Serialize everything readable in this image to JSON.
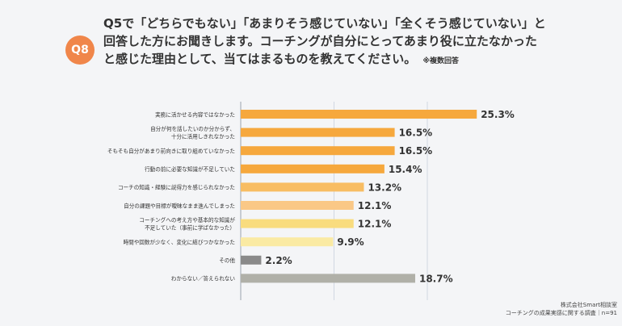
{
  "badge": "Q8",
  "question": {
    "lines": [
      "Q5で「どちらでもない」「あまりそう感じていない」「全くそう感じていない」と",
      "回答した方にお聞きします。コーチングが自分にとってあまり役に立たなかった",
      "と感じた理由として、当てはまるものを教えてください。"
    ],
    "note": "※複数回答"
  },
  "source": {
    "line1": "株式会社Smart相談室",
    "line2": "コーチングの成果実感に関する調査｜n=91"
  },
  "colors": {
    "badge": "#f0864a",
    "bars": [
      "#f6a83d",
      "#f6a83d",
      "#f6a83d",
      "#f6a83d",
      "#f8bd63",
      "#fac886",
      "#f9dc7e",
      "#faeaa3",
      "#8a8a8a",
      "#b0b0a8"
    ]
  },
  "chart_data": {
    "type": "bar",
    "orientation": "horizontal",
    "unit": "%",
    "xlim": [
      0,
      30
    ],
    "categories": [
      [
        "実務に活かせる内容ではなかった"
      ],
      [
        "自分が何を話したいのか分からず、",
        "十分に活用しきれなかった"
      ],
      [
        "そもそも自分があまり前向きに取り組めていなかった"
      ],
      [
        "行動の前に必要な知識が不足していた"
      ],
      [
        "コーチの知識・経験に説得力を感じられなかった"
      ],
      [
        "自分の課題や目標が曖昧なまま進んでしまった"
      ],
      [
        "コーチングへの考え方や基本的な知識が",
        "不足していた（事前に学ばなかった）"
      ],
      [
        "時間や回数が少なく、変化に結びつかなかった"
      ],
      [
        "その他"
      ],
      [
        "わからない／答えられない"
      ]
    ],
    "values": [
      25.3,
      16.5,
      16.5,
      15.4,
      13.2,
      12.1,
      12.1,
      9.9,
      2.2,
      18.7
    ],
    "value_labels": [
      "25.3%",
      "16.5%",
      "16.5%",
      "15.4%",
      "13.2%",
      "12.1%",
      "12.1%",
      "9.9%",
      "2.2%",
      "18.7%"
    ],
    "grid": true
  }
}
